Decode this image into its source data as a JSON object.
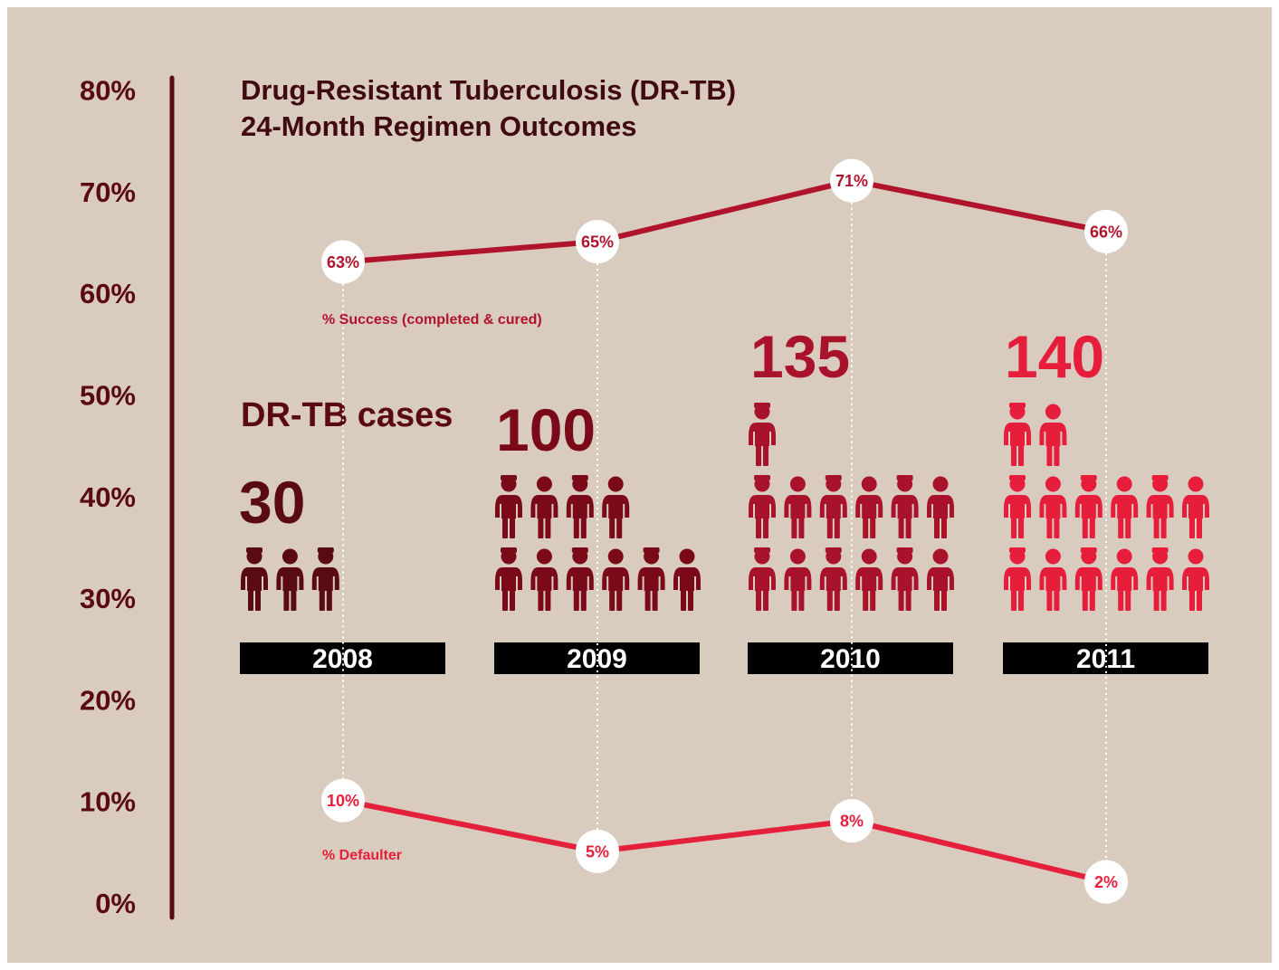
{
  "chart_data": {
    "type": "line",
    "title_lines": [
      "Drug-Resistant Tuberculosis (DR-TB)",
      "24-Month Regimen Outcomes"
    ],
    "y_axis": {
      "ticks": [
        "0%",
        "10%",
        "20%",
        "30%",
        "40%",
        "50%",
        "60%",
        "70%",
        "80%"
      ],
      "ylim": [
        0,
        80
      ],
      "color": "#5a0a12"
    },
    "categories": [
      "2008",
      "2009",
      "2010",
      "2011"
    ],
    "series": [
      {
        "name": "% Success (completed & cured)",
        "values": [
          63,
          65,
          71,
          66
        ],
        "labels": [
          "63%",
          "65%",
          "71%",
          "66%"
        ],
        "color": "#b0142d"
      },
      {
        "name": "% Defaulter",
        "values": [
          10,
          5,
          8,
          2
        ],
        "labels": [
          "10%",
          "5%",
          "8%",
          "2%"
        ],
        "color": "#e4203c"
      }
    ],
    "cases": {
      "label": "DR-TB cases",
      "values": [
        30,
        100,
        135,
        140
      ],
      "labels": [
        "30",
        "100",
        "135",
        "140"
      ],
      "icon_counts": [
        3,
        10,
        13,
        14
      ],
      "colors": [
        "#5a0a12",
        "#7a0a18",
        "#a8122b",
        "#e61e3c"
      ]
    },
    "grid": false,
    "legend": "inline"
  }
}
